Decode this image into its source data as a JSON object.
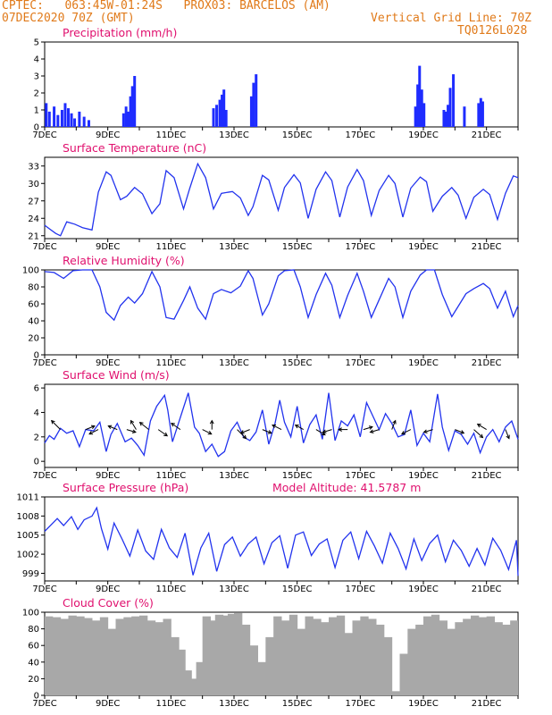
{
  "header": {
    "line1": "CPTEC:   063:45W-01:24S   PROX03: BARCELOS (AM)",
    "line2_left": "07DEC2020 70Z (GMT)",
    "line2_right": "Vertical Grid Line: 70Z",
    "line3_right": "TQ0126L028"
  },
  "colors": {
    "header": "#e07a1a",
    "title": "#e0106e",
    "series": "#2233ee",
    "bars": "#1e2cff",
    "cloud": "#a8a8a8"
  },
  "x_tick_labels": [
    "7DEC",
    "9DEC",
    "11DEC",
    "13DEC",
    "15DEC",
    "17DEC",
    "19DEC",
    "21DEC"
  ],
  "chart_data": [
    {
      "type": "bar",
      "title": "Precipitation (mm/h)",
      "ylim": [
        0,
        5
      ],
      "yticks": [
        0,
        1,
        2,
        3,
        4,
        5
      ],
      "x_range": [
        7,
        22
      ],
      "x": [
        7.05,
        7.15,
        7.3,
        7.42,
        7.55,
        7.65,
        7.75,
        7.85,
        7.95,
        8.1,
        8.25,
        8.4,
        9.5,
        9.58,
        9.65,
        9.72,
        9.78,
        9.85,
        12.35,
        12.45,
        12.55,
        12.62,
        12.68,
        12.75,
        13.55,
        13.62,
        13.7,
        18.75,
        18.82,
        18.88,
        18.95,
        19.02,
        19.65,
        19.72,
        19.78,
        19.85,
        19.95,
        20.3,
        20.75,
        20.82,
        20.88
      ],
      "values": [
        1.4,
        0.9,
        1.2,
        0.7,
        1.0,
        1.4,
        1.1,
        0.8,
        0.5,
        0.9,
        0.6,
        0.4,
        0.8,
        1.2,
        0.9,
        1.8,
        2.4,
        3.0,
        1.1,
        1.3,
        1.6,
        1.9,
        2.2,
        1.0,
        1.8,
        2.6,
        3.1,
        1.2,
        2.5,
        3.6,
        2.2,
        1.4,
        1.0,
        0.9,
        1.3,
        2.3,
        3.1,
        1.2,
        1.4,
        1.7,
        1.5
      ]
    },
    {
      "type": "line",
      "title": "Surface Temperature (nC)",
      "ylim": [
        20.5,
        34.5
      ],
      "yticks": [
        21,
        24,
        27,
        30,
        33
      ],
      "x": [
        7.0,
        7.15,
        7.35,
        7.5,
        7.7,
        7.95,
        8.2,
        8.5,
        8.7,
        8.95,
        9.1,
        9.4,
        9.6,
        9.85,
        10.1,
        10.4,
        10.65,
        10.85,
        11.1,
        11.4,
        11.6,
        11.85,
        12.1,
        12.35,
        12.6,
        12.95,
        13.2,
        13.45,
        13.6,
        13.9,
        14.1,
        14.4,
        14.6,
        14.9,
        15.1,
        15.35,
        15.6,
        15.9,
        16.1,
        16.35,
        16.6,
        16.9,
        17.1,
        17.35,
        17.6,
        17.9,
        18.1,
        18.35,
        18.6,
        18.9,
        19.1,
        19.3,
        19.6,
        19.9,
        20.1,
        20.35,
        20.6,
        20.9,
        21.1,
        21.35,
        21.6,
        21.85,
        22.0
      ],
      "values": [
        22.8,
        22.2,
        21.4,
        21.0,
        23.4,
        23.0,
        22.4,
        22.0,
        28.5,
        32.0,
        31.4,
        27.2,
        27.8,
        29.3,
        28.2,
        24.8,
        26.5,
        32.2,
        31.0,
        25.6,
        29.2,
        33.4,
        31.0,
        25.6,
        28.3,
        28.6,
        27.5,
        24.5,
        26.0,
        31.4,
        30.6,
        25.4,
        29.3,
        31.5,
        30.1,
        24.0,
        29.0,
        32.0,
        30.5,
        24.2,
        29.4,
        32.4,
        30.5,
        24.5,
        28.8,
        31.4,
        30.0,
        24.2,
        29.2,
        31.1,
        30.3,
        25.2,
        27.8,
        29.3,
        28.0,
        24.0,
        27.6,
        29.0,
        28.1,
        23.8,
        28.3,
        31.3,
        31.0
      ]
    },
    {
      "type": "line",
      "title": "Relative Humidity (%)",
      "ylim": [
        0,
        100
      ],
      "yticks": [
        0,
        20,
        40,
        60,
        80,
        100
      ],
      "x": [
        7.0,
        7.3,
        7.6,
        7.9,
        8.2,
        8.5,
        8.75,
        8.95,
        9.2,
        9.4,
        9.65,
        9.85,
        10.1,
        10.4,
        10.65,
        10.85,
        11.1,
        11.4,
        11.6,
        11.85,
        12.1,
        12.35,
        12.6,
        12.9,
        13.2,
        13.45,
        13.6,
        13.9,
        14.1,
        14.4,
        14.6,
        14.9,
        15.1,
        15.35,
        15.6,
        15.9,
        16.1,
        16.35,
        16.6,
        16.9,
        17.1,
        17.35,
        17.6,
        17.9,
        18.1,
        18.35,
        18.6,
        18.9,
        19.1,
        19.35,
        19.6,
        19.9,
        20.1,
        20.35,
        20.6,
        20.9,
        21.1,
        21.35,
        21.6,
        21.85,
        22.0
      ],
      "values": [
        98,
        97,
        90,
        99,
        100,
        100,
        80,
        50,
        41,
        58,
        68,
        61,
        72,
        98,
        80,
        44,
        42,
        64,
        80,
        55,
        42,
        72,
        77,
        73,
        81,
        99,
        90,
        47,
        60,
        93,
        99,
        100,
        80,
        44,
        71,
        96,
        82,
        44,
        70,
        96,
        75,
        44,
        65,
        90,
        80,
        44,
        75,
        94,
        100,
        100,
        71,
        45,
        57,
        72,
        78,
        84,
        78,
        55,
        75,
        45,
        58
      ]
    },
    {
      "type": "line",
      "title": "Surface Wind (m/s)",
      "ylim": [
        -0.5,
        6.3
      ],
      "yticks": [
        0,
        2,
        4,
        6
      ],
      "x": [
        7.0,
        7.15,
        7.3,
        7.5,
        7.7,
        7.9,
        8.1,
        8.3,
        8.55,
        8.75,
        8.95,
        9.1,
        9.3,
        9.55,
        9.75,
        9.95,
        10.15,
        10.35,
        10.55,
        10.8,
        10.9,
        11.05,
        11.2,
        11.35,
        11.55,
        11.75,
        11.9,
        12.1,
        12.3,
        12.5,
        12.7,
        12.9,
        13.1,
        13.3,
        13.5,
        13.7,
        13.9,
        14.1,
        14.3,
        14.45,
        14.6,
        14.8,
        15.0,
        15.2,
        15.4,
        15.6,
        15.8,
        16.0,
        16.2,
        16.4,
        16.6,
        16.8,
        17.0,
        17.2,
        17.4,
        17.6,
        17.8,
        18.0,
        18.2,
        18.4,
        18.6,
        18.8,
        19.0,
        19.2,
        19.45,
        19.6,
        19.8,
        20.0,
        20.2,
        20.4,
        20.6,
        20.8,
        21.0,
        21.2,
        21.4,
        21.6,
        21.8,
        22.0
      ],
      "values": [
        1.5,
        2.1,
        1.8,
        2.7,
        2.3,
        2.5,
        1.2,
        2.6,
        2.5,
        3.2,
        0.8,
        2.2,
        3.1,
        1.6,
        1.9,
        1.3,
        0.5,
        3.3,
        4.5,
        5.4,
        4.2,
        1.6,
        2.8,
        4.0,
        5.6,
        2.8,
        2.3,
        0.8,
        1.4,
        0.4,
        0.8,
        2.5,
        3.2,
        2.0,
        1.7,
        2.4,
        4.2,
        1.4,
        3.1,
        5.0,
        3.2,
        2.0,
        4.5,
        1.5,
        3.0,
        3.8,
        1.8,
        5.6,
        1.7,
        3.3,
        2.9,
        3.8,
        2.0,
        4.8,
        3.7,
        2.6,
        3.9,
        3.1,
        2.0,
        2.2,
        4.2,
        1.3,
        2.3,
        1.6,
        5.5,
        2.8,
        0.9,
        2.5,
        2.2,
        1.4,
        2.3,
        0.7,
        2.0,
        2.6,
        1.6,
        2.8,
        3.3,
        1.8
      ]
    },
    {
      "type": "line",
      "title": "Surface Pressure (hPa)",
      "annotation": "Model Altitude: 41.5787 m",
      "ylim": [
        997.8,
        1011
      ],
      "yticks": [
        999,
        1002,
        1005,
        1008,
        1011
      ],
      "yticklabels": [
        "999",
        "1002",
        "1005",
        "1008",
        "1011"
      ],
      "x": [
        7.0,
        7.2,
        7.4,
        7.6,
        7.85,
        8.05,
        8.25,
        8.5,
        8.65,
        8.8,
        9.0,
        9.2,
        9.45,
        9.7,
        9.95,
        10.2,
        10.45,
        10.7,
        10.95,
        11.2,
        11.45,
        11.7,
        11.95,
        12.2,
        12.45,
        12.7,
        12.95,
        13.2,
        13.45,
        13.7,
        13.95,
        14.2,
        14.45,
        14.7,
        14.95,
        15.2,
        15.45,
        15.7,
        15.95,
        16.2,
        16.45,
        16.7,
        16.95,
        17.2,
        17.45,
        17.7,
        17.95,
        18.2,
        18.45,
        18.7,
        18.95,
        19.2,
        19.45,
        19.7,
        19.95,
        20.2,
        20.45,
        20.7,
        20.95,
        21.2,
        21.45,
        21.7,
        21.95,
        22.0
      ],
      "values": [
        1005.6,
        1006.6,
        1007.6,
        1006.5,
        1007.9,
        1005.9,
        1007.4,
        1008.0,
        1009.3,
        1006.0,
        1002.8,
        1006.9,
        1004.4,
        1001.7,
        1005.8,
        1002.5,
        1001.2,
        1005.9,
        1003.0,
        1001.5,
        1005.3,
        998.7,
        1003.0,
        1005.3,
        999.3,
        1003.5,
        1004.7,
        1001.7,
        1003.6,
        1004.7,
        1000.5,
        1003.8,
        1004.9,
        999.8,
        1005.0,
        1005.5,
        1001.8,
        1003.6,
        1004.4,
        999.9,
        1004.2,
        1005.5,
        1001.3,
        1005.6,
        1003.3,
        1000.6,
        1005.3,
        1002.9,
        999.7,
        1004.4,
        1001.0,
        1003.7,
        1005.0,
        1000.8,
        1004.2,
        1002.6,
        1000.1,
        1002.9,
        1000.3,
        1004.5,
        1002.6,
        999.6,
        1004.2,
        998.6
      ]
    },
    {
      "type": "bar",
      "title": "Cloud Cover (%)",
      "ylim": [
        0,
        100
      ],
      "yticks": [
        0,
        20,
        40,
        60,
        80,
        100
      ],
      "x_range": [
        7,
        22
      ],
      "x": [
        7.0,
        7.25,
        7.5,
        7.75,
        8.0,
        8.25,
        8.5,
        8.75,
        9.0,
        9.25,
        9.5,
        9.75,
        10.0,
        10.25,
        10.5,
        10.75,
        11.0,
        11.2,
        11.4,
        11.6,
        11.8,
        12.0,
        12.2,
        12.4,
        12.6,
        12.8,
        13.0,
        13.25,
        13.5,
        13.75,
        14.0,
        14.25,
        14.5,
        14.75,
        15.0,
        15.25,
        15.5,
        15.75,
        16.0,
        16.25,
        16.5,
        16.75,
        17.0,
        17.25,
        17.5,
        17.75,
        18.0,
        18.25,
        18.5,
        18.75,
        19.0,
        19.25,
        19.5,
        19.75,
        20.0,
        20.25,
        20.5,
        20.75,
        21.0,
        21.25,
        21.5,
        21.75
      ],
      "values": [
        95,
        94,
        92,
        96,
        95,
        93,
        90,
        94,
        80,
        92,
        94,
        95,
        96,
        90,
        88,
        92,
        70,
        55,
        30,
        20,
        40,
        95,
        90,
        97,
        96,
        98,
        99,
        85,
        60,
        40,
        70,
        95,
        90,
        97,
        80,
        95,
        92,
        88,
        94,
        96,
        75,
        90,
        95,
        92,
        85,
        70,
        5,
        50,
        80,
        85,
        95,
        97,
        90,
        80,
        88,
        92,
        96,
        94,
        95,
        88,
        85,
        90
      ]
    }
  ]
}
